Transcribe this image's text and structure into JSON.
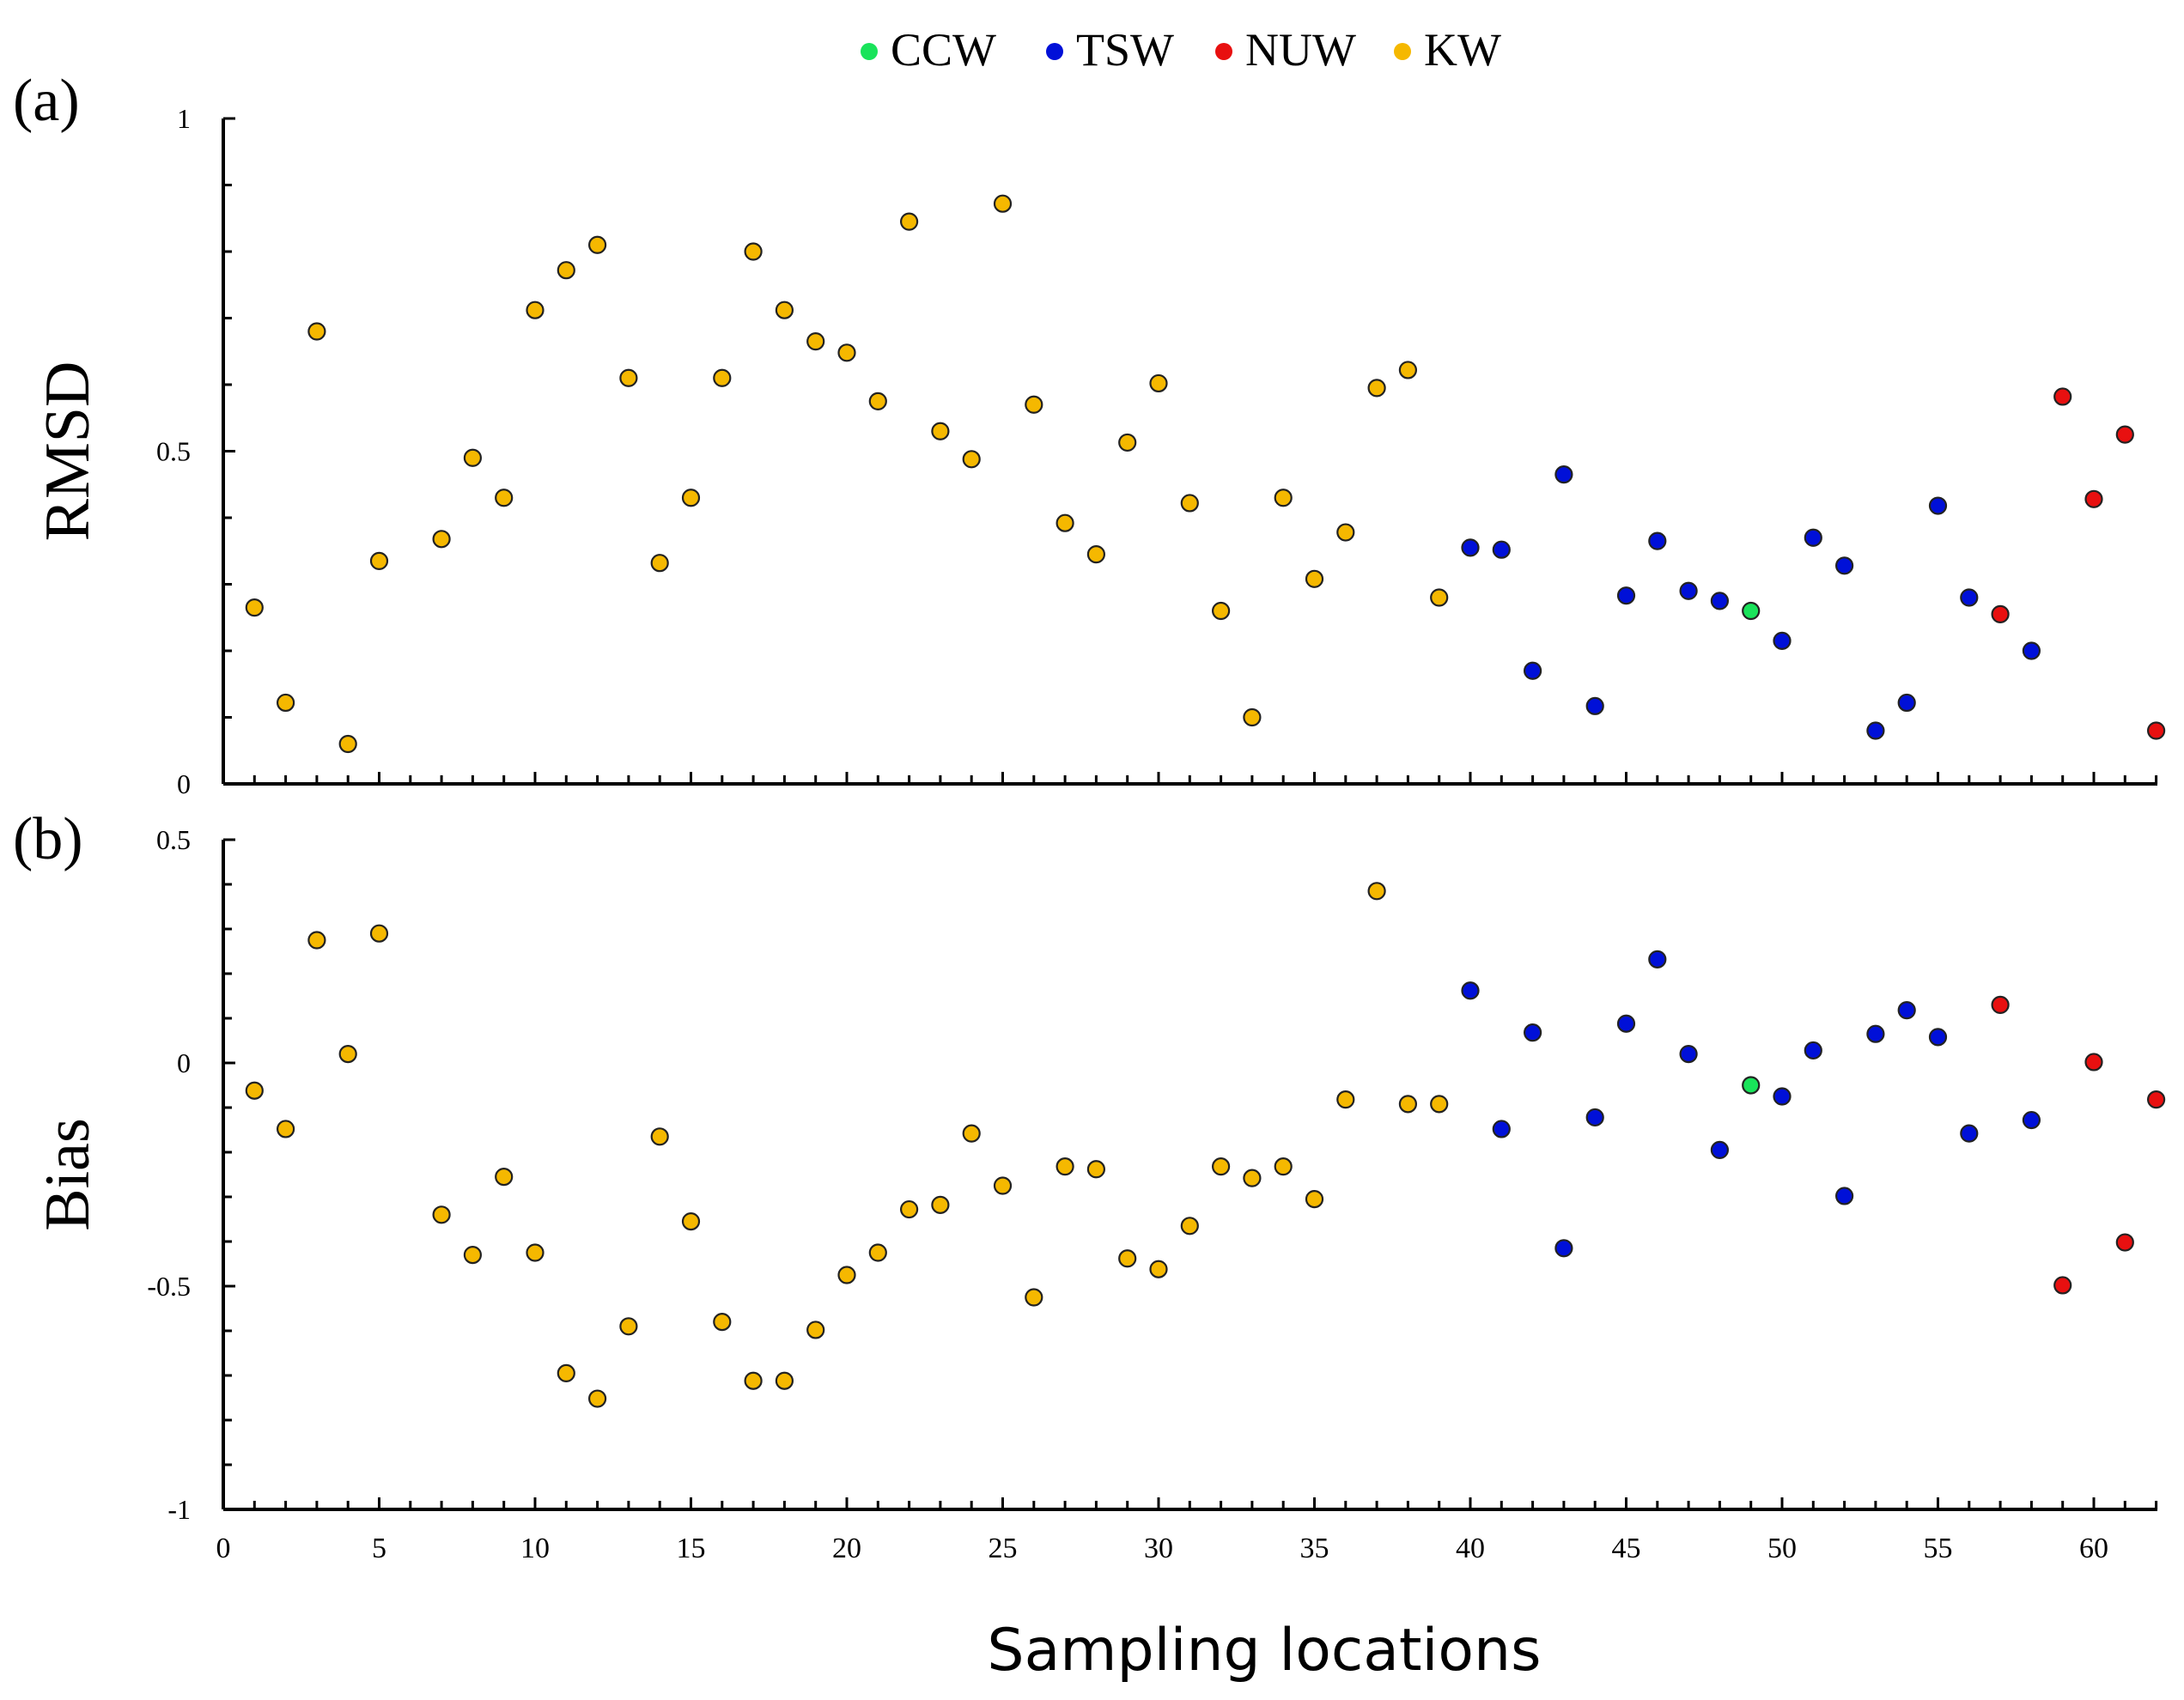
{
  "legend": [
    {
      "label": "CCW",
      "color": "#19e35a"
    },
    {
      "label": "TSW",
      "color": "#0010d8"
    },
    {
      "label": "NUW",
      "color": "#e81010"
    },
    {
      "label": "KW",
      "color": "#f5b800"
    }
  ],
  "xlabel": "Sampling locations",
  "chart_data": [
    {
      "type": "scatter",
      "panel_label": "(a)",
      "ylabel": "RMSD",
      "xlim": [
        0,
        62
      ],
      "ylim": [
        0,
        1
      ],
      "yticks": [
        0,
        0.5,
        1
      ],
      "ytick_labels": [
        "0",
        "0.5",
        "1"
      ],
      "xticks": [
        0,
        5,
        10,
        15,
        20,
        25,
        30,
        35,
        40,
        45,
        50,
        55,
        60
      ],
      "xtick_labels": [],
      "series": [
        {
          "name": "KW",
          "points": [
            [
              1,
              0.265
            ],
            [
              2,
              0.122
            ],
            [
              3,
              0.68
            ],
            [
              4,
              0.06
            ],
            [
              5,
              0.335
            ],
            [
              7,
              0.368
            ],
            [
              8,
              0.49
            ],
            [
              9,
              0.43
            ],
            [
              10,
              0.712
            ],
            [
              11,
              0.772
            ],
            [
              12,
              0.81
            ],
            [
              13,
              0.61
            ],
            [
              14,
              0.332
            ],
            [
              15,
              0.43
            ],
            [
              16,
              0.61
            ],
            [
              17,
              0.8
            ],
            [
              18,
              0.712
            ],
            [
              19,
              0.665
            ],
            [
              20,
              0.648
            ],
            [
              21,
              0.575
            ],
            [
              22,
              0.845
            ],
            [
              23,
              0.53
            ],
            [
              24,
              0.488
            ],
            [
              25,
              0.872
            ],
            [
              26,
              0.57
            ],
            [
              27,
              0.392
            ],
            [
              28,
              0.345
            ],
            [
              29,
              0.513
            ],
            [
              30,
              0.602
            ],
            [
              31,
              0.422
            ],
            [
              32,
              0.26
            ],
            [
              33,
              0.1
            ],
            [
              34,
              0.43
            ],
            [
              35,
              0.308
            ],
            [
              36,
              0.378
            ],
            [
              37,
              0.595
            ],
            [
              38,
              0.622
            ],
            [
              39,
              0.28
            ]
          ]
        },
        {
          "name": "TSW",
          "points": [
            [
              40,
              0.355
            ],
            [
              41,
              0.352
            ],
            [
              42,
              0.17
            ],
            [
              43,
              0.465
            ],
            [
              44,
              0.117
            ],
            [
              45,
              0.283
            ],
            [
              46,
              0.365
            ],
            [
              47,
              0.29
            ],
            [
              48,
              0.275
            ],
            [
              50,
              0.215
            ],
            [
              51,
              0.37
            ],
            [
              52,
              0.328
            ],
            [
              53,
              0.08
            ],
            [
              54,
              0.122
            ],
            [
              55,
              0.418
            ],
            [
              56,
              0.28
            ],
            [
              58,
              0.2
            ]
          ]
        },
        {
          "name": "CCW",
          "points": [
            [
              49,
              0.26
            ]
          ]
        },
        {
          "name": "NUW",
          "points": [
            [
              57,
              0.255
            ],
            [
              59,
              0.582
            ],
            [
              60,
              0.428
            ],
            [
              61,
              0.525
            ],
            [
              62,
              0.08
            ]
          ]
        }
      ]
    },
    {
      "type": "scatter",
      "panel_label": "(b)",
      "ylabel": "Bias",
      "xlim": [
        0,
        62
      ],
      "ylim": [
        -1,
        0.5
      ],
      "yticks": [
        -1,
        -0.5,
        0,
        0.5
      ],
      "ytick_labels": [
        "-1",
        "-0.5",
        "0",
        "0.5"
      ],
      "xticks": [
        0,
        5,
        10,
        15,
        20,
        25,
        30,
        35,
        40,
        45,
        50,
        55,
        60
      ],
      "xtick_labels": [
        "0",
        "5",
        "10",
        "15",
        "20",
        "25",
        "30",
        "35",
        "40",
        "45",
        "50",
        "55",
        "60"
      ],
      "series": [
        {
          "name": "KW",
          "points": [
            [
              1,
              -0.062
            ],
            [
              2,
              -0.148
            ],
            [
              3,
              0.275
            ],
            [
              4,
              0.02
            ],
            [
              5,
              0.29
            ],
            [
              7,
              -0.34
            ],
            [
              8,
              -0.43
            ],
            [
              9,
              -0.255
            ],
            [
              10,
              -0.425
            ],
            [
              11,
              -0.695
            ],
            [
              12,
              -0.752
            ],
            [
              13,
              -0.59
            ],
            [
              14,
              -0.165
            ],
            [
              15,
              -0.355
            ],
            [
              16,
              -0.58
            ],
            [
              17,
              -0.712
            ],
            [
              18,
              -0.712
            ],
            [
              19,
              -0.598
            ],
            [
              20,
              -0.475
            ],
            [
              21,
              -0.425
            ],
            [
              22,
              -0.328
            ],
            [
              23,
              -0.318
            ],
            [
              24,
              -0.158
            ],
            [
              25,
              -0.275
            ],
            [
              26,
              -0.525
            ],
            [
              27,
              -0.232
            ],
            [
              28,
              -0.238
            ],
            [
              29,
              -0.438
            ],
            [
              30,
              -0.462
            ],
            [
              31,
              -0.365
            ],
            [
              32,
              -0.232
            ],
            [
              33,
              -0.258
            ],
            [
              34,
              -0.232
            ],
            [
              35,
              -0.305
            ],
            [
              36,
              -0.082
            ],
            [
              37,
              0.385
            ],
            [
              38,
              -0.092
            ],
            [
              39,
              -0.092
            ]
          ]
        },
        {
          "name": "TSW",
          "points": [
            [
              40,
              0.162
            ],
            [
              41,
              -0.148
            ],
            [
              42,
              0.068
            ],
            [
              43,
              -0.415
            ],
            [
              44,
              -0.122
            ],
            [
              45,
              0.088
            ],
            [
              46,
              0.232
            ],
            [
              47,
              0.02
            ],
            [
              48,
              -0.195
            ],
            [
              50,
              -0.075
            ],
            [
              51,
              0.028
            ],
            [
              52,
              -0.298
            ],
            [
              53,
              0.065
            ],
            [
              54,
              0.118
            ],
            [
              55,
              0.058
            ],
            [
              56,
              -0.158
            ],
            [
              58,
              -0.128
            ]
          ]
        },
        {
          "name": "CCW",
          "points": [
            [
              49,
              -0.05
            ]
          ]
        },
        {
          "name": "NUW",
          "points": [
            [
              57,
              0.13
            ],
            [
              59,
              -0.498
            ],
            [
              60,
              0.002
            ],
            [
              61,
              -0.402
            ],
            [
              62,
              -0.082
            ]
          ]
        }
      ]
    }
  ]
}
